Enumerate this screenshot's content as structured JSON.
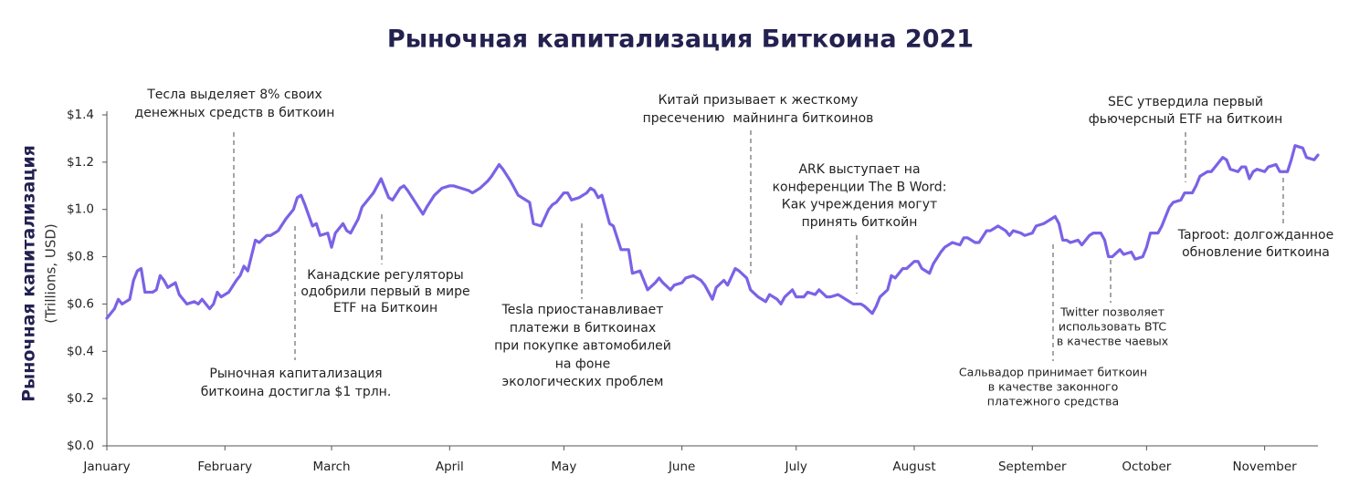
{
  "chart_data": {
    "type": "line",
    "title": "Рыночная капитализация Биткоина 2021",
    "y_label": "Рыночная капитализация",
    "y_sublabel": "(Trillions, USD)",
    "xlim": [
      0,
      318
    ],
    "xticks": [
      {
        "value": 0,
        "label": "January"
      },
      {
        "value": 31,
        "label": "February"
      },
      {
        "value": 59,
        "label": "March"
      },
      {
        "value": 90,
        "label": "April"
      },
      {
        "value": 120,
        "label": "May"
      },
      {
        "value": 151,
        "label": "June"
      },
      {
        "value": 181,
        "label": "July"
      },
      {
        "value": 212,
        "label": "August"
      },
      {
        "value": 243,
        "label": "September"
      },
      {
        "value": 273,
        "label": "October"
      },
      {
        "value": 304,
        "label": "November"
      }
    ],
    "ylim": [
      0,
      1.4
    ],
    "yticks": [
      {
        "value": 0,
        "label": "$0.0"
      },
      {
        "value": 0.2,
        "label": "$0.2"
      },
      {
        "value": 0.4,
        "label": "$0.4"
      },
      {
        "value": 0.6,
        "label": "$0.6"
      },
      {
        "value": 0.8,
        "label": "$0.8"
      },
      {
        "value": 1.0,
        "label": "$1.0"
      },
      {
        "value": 1.2,
        "label": "$1.2"
      },
      {
        "value": 1.4,
        "label": "$1.4"
      }
    ],
    "series": [
      {
        "name": "Market cap",
        "color": "#7b62e6",
        "x": [
          0,
          2,
          3,
          4,
          6,
          7,
          8,
          9,
          10,
          12,
          13,
          14,
          15,
          16,
          18,
          19,
          21,
          23,
          24,
          25,
          27,
          28,
          29,
          30,
          32,
          34,
          35,
          36,
          37,
          39,
          40,
          42,
          43,
          45,
          47,
          49,
          50,
          51,
          52,
          54,
          55,
          56,
          58,
          59,
          60,
          62,
          63,
          64,
          66,
          67,
          69,
          70,
          72,
          74,
          75,
          77,
          78,
          79,
          81,
          83,
          84,
          86,
          88,
          90,
          91,
          93,
          95,
          96,
          98,
          100,
          101,
          103,
          104,
          106,
          108,
          109,
          111,
          112,
          114,
          116,
          117,
          118,
          120,
          121,
          122,
          124,
          126,
          127,
          128,
          129,
          130,
          132,
          133,
          134,
          135,
          137,
          138,
          140,
          141,
          142,
          144,
          145,
          146,
          148,
          149,
          151,
          152,
          154,
          156,
          157,
          159,
          160,
          162,
          163,
          165,
          166,
          168,
          169,
          171,
          173,
          174,
          176,
          177,
          178,
          180,
          181,
          183,
          184,
          186,
          187,
          189,
          190,
          192,
          193,
          195,
          196,
          198,
          199,
          201,
          202,
          203,
          205,
          206,
          207,
          209,
          210,
          212,
          213,
          214,
          216,
          217,
          219,
          220,
          222,
          224,
          225,
          226,
          228,
          229,
          231,
          232,
          234,
          236,
          237,
          238,
          240,
          241,
          243,
          244,
          246,
          248,
          249,
          250,
          251,
          252,
          253,
          255,
          256,
          258,
          259,
          261,
          262,
          263,
          264,
          266,
          267,
          269,
          270,
          272,
          273,
          274,
          276,
          277,
          279,
          280,
          282,
          283,
          285,
          286,
          287,
          289,
          290,
          292,
          293,
          294,
          295,
          297,
          298,
          299,
          300,
          301,
          302,
          304,
          305,
          307,
          308,
          310,
          311,
          312,
          314,
          315,
          317,
          318
        ],
        "values": [
          0.54,
          0.58,
          0.62,
          0.6,
          0.62,
          0.7,
          0.74,
          0.75,
          0.65,
          0.65,
          0.66,
          0.72,
          0.7,
          0.67,
          0.69,
          0.64,
          0.6,
          0.61,
          0.6,
          0.62,
          0.58,
          0.6,
          0.65,
          0.63,
          0.65,
          0.7,
          0.72,
          0.76,
          0.74,
          0.87,
          0.86,
          0.89,
          0.89,
          0.91,
          0.96,
          1.0,
          1.05,
          1.06,
          1.02,
          0.93,
          0.94,
          0.89,
          0.9,
          0.84,
          0.9,
          0.94,
          0.91,
          0.9,
          0.96,
          1.01,
          1.05,
          1.07,
          1.13,
          1.05,
          1.04,
          1.09,
          1.1,
          1.08,
          1.03,
          0.98,
          1.01,
          1.06,
          1.09,
          1.1,
          1.1,
          1.09,
          1.08,
          1.07,
          1.09,
          1.12,
          1.14,
          1.19,
          1.17,
          1.12,
          1.06,
          1.05,
          1.03,
          0.94,
          0.93,
          1.0,
          1.02,
          1.03,
          1.07,
          1.07,
          1.04,
          1.05,
          1.07,
          1.09,
          1.08,
          1.05,
          1.06,
          0.94,
          0.93,
          0.88,
          0.83,
          0.83,
          0.73,
          0.74,
          0.7,
          0.66,
          0.69,
          0.71,
          0.69,
          0.66,
          0.68,
          0.69,
          0.71,
          0.72,
          0.7,
          0.68,
          0.62,
          0.67,
          0.7,
          0.68,
          0.75,
          0.74,
          0.71,
          0.66,
          0.63,
          0.61,
          0.64,
          0.62,
          0.6,
          0.63,
          0.66,
          0.63,
          0.63,
          0.65,
          0.64,
          0.66,
          0.63,
          0.63,
          0.64,
          0.63,
          0.61,
          0.6,
          0.6,
          0.59,
          0.56,
          0.59,
          0.63,
          0.66,
          0.72,
          0.71,
          0.75,
          0.75,
          0.78,
          0.78,
          0.75,
          0.73,
          0.77,
          0.82,
          0.84,
          0.86,
          0.85,
          0.88,
          0.88,
          0.86,
          0.86,
          0.91,
          0.91,
          0.93,
          0.91,
          0.89,
          0.91,
          0.9,
          0.89,
          0.9,
          0.93,
          0.94,
          0.96,
          0.97,
          0.94,
          0.87,
          0.87,
          0.86,
          0.87,
          0.85,
          0.89,
          0.9,
          0.9,
          0.87,
          0.8,
          0.8,
          0.83,
          0.81,
          0.82,
          0.79,
          0.8,
          0.84,
          0.9,
          0.9,
          0.93,
          1.01,
          1.03,
          1.04,
          1.07,
          1.07,
          1.1,
          1.14,
          1.16,
          1.16,
          1.2,
          1.22,
          1.21,
          1.17,
          1.16,
          1.18,
          1.18,
          1.13,
          1.16,
          1.17,
          1.16,
          1.18,
          1.19,
          1.16,
          1.16,
          1.21,
          1.27,
          1.26,
          1.22,
          1.21,
          1.23
        ]
      }
    ],
    "annotations": [
      [
        "Тесла выделяет 8% своих",
        "денежных средств в биткоин"
      ],
      [
        "Рыночная капитализация",
        "биткоина достигла $1 трлн."
      ],
      [
        "Канадские регуляторы",
        "одобрили первый в мире",
        "ETF на Биткоин"
      ],
      [
        "Tesla приостанавливает",
        "платежи в биткоинах",
        "при покупке автомобилей",
        "на фоне",
        "экологических проблем"
      ],
      [
        "Китай призывает к жесткому",
        "пресечению  майнинга биткоинов"
      ],
      [
        "ARK выступает на",
        "конференции The B Word:",
        "Как учреждения могут",
        "принять биткойн"
      ],
      [
        "Сальвадор принимает биткоин",
        "в качестве законного",
        "платежного средства"
      ],
      [
        "Twitter позволяет",
        "использовать BTC",
        "в качестве чаевых"
      ],
      [
        "SEC утвердила первый",
        "фьючерсный ETF на биткоин"
      ],
      [
        "Taproot: долгожданное",
        "обновление биткоина"
      ]
    ]
  }
}
